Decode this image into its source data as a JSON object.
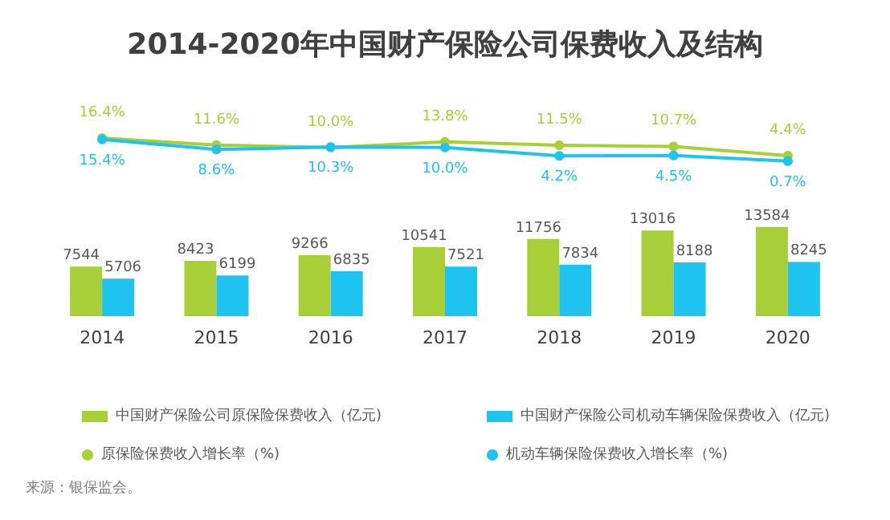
{
  "chart_data": [
    {
      "type": "line",
      "title": "2014-2020年中国财产保险公司保费收入及结构",
      "categories": [
        "2014",
        "2015",
        "2016",
        "2017",
        "2018",
        "2019",
        "2020"
      ],
      "series": [
        {
          "name": "原保险保费收入增长率（%)",
          "color": "#a9cf38",
          "values": [
            16.4,
            11.6,
            10.0,
            13.8,
            11.5,
            10.7,
            4.4
          ],
          "value_labels": [
            "16.4%",
            "11.6%",
            "10.0%",
            "13.8%",
            "11.5%",
            "10.7%",
            "4.4%"
          ]
        },
        {
          "name": "机动车辆保险保费收入增长率（%)",
          "color": "#1ec3ef",
          "values": [
            15.4,
            8.6,
            10.3,
            10.0,
            4.2,
            4.5,
            0.7
          ],
          "value_labels": [
            "15.4%",
            "8.6%",
            "10.3%",
            "10.0%",
            "4.2%",
            "4.5%",
            "0.7%"
          ]
        }
      ],
      "legend": "bottom",
      "marker": "circle",
      "tick_labels": false
    },
    {
      "type": "bar",
      "categories": [
        "2014",
        "2015",
        "2016",
        "2017",
        "2018",
        "2019",
        "2020"
      ],
      "series": [
        {
          "name": "中国财产保险公司原保险保费收入（亿元)",
          "color": "#a9cf38",
          "values": [
            7544,
            8423,
            9266,
            10541,
            11756,
            13016,
            13584
          ]
        },
        {
          "name": "中国财产保险公司机动车辆保险保费收入（亿元)",
          "color": "#1ec3ef",
          "values": [
            5706,
            6199,
            6835,
            7521,
            7834,
            8188,
            8245
          ]
        }
      ],
      "data_labels": true,
      "legend": "bottom",
      "tick_labels": "x",
      "annotations": [
        "来源：银保监会。"
      ]
    }
  ]
}
